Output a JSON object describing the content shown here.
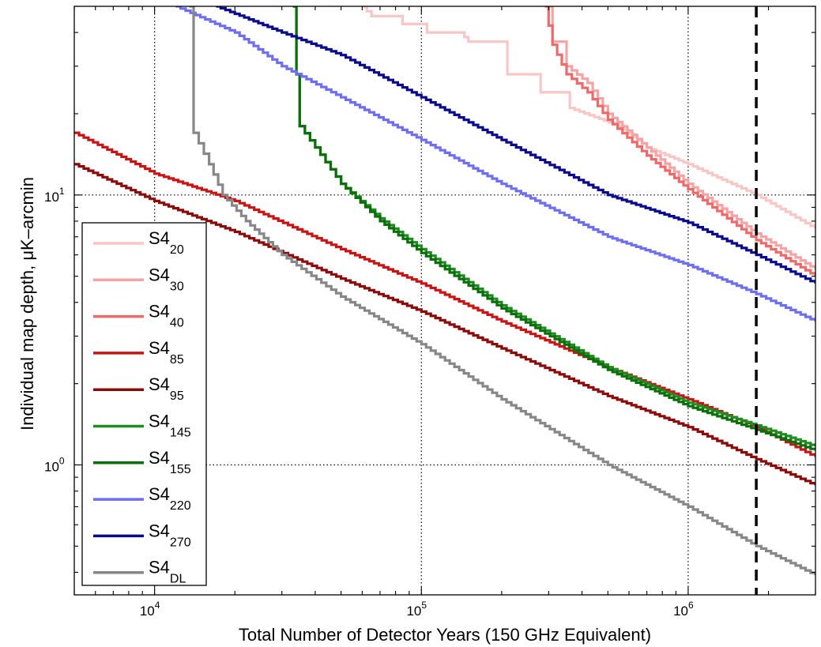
{
  "chart_data": {
    "type": "line",
    "title": "",
    "xlabel": "Total Number of Detector Years (150 GHz Equivalent)",
    "ylabel": "Individual map depth, μK–arcmin",
    "x_scale": "log",
    "y_scale": "log",
    "xlim": [
      5000,
      3000000
    ],
    "ylim": [
      0.33,
      50
    ],
    "grid": true,
    "legend_position": "lower-left",
    "x_ticks": [
      {
        "value": 10000,
        "base": "10",
        "exp": "4"
      },
      {
        "value": 100000,
        "base": "10",
        "exp": "5"
      },
      {
        "value": 1000000,
        "base": "10",
        "exp": "6"
      }
    ],
    "y_ticks": [
      {
        "value": 1,
        "base": "10",
        "exp": "0"
      },
      {
        "value": 10,
        "base": "10",
        "exp": "1"
      }
    ],
    "reference_line": {
      "x": 1800000,
      "style": "dashed",
      "color": "#000000"
    },
    "series": [
      {
        "name": "S4",
        "sub": "20",
        "color": "#F9C6C6",
        "points": [
          [
            60000,
            50
          ],
          [
            65000,
            46
          ],
          [
            80000,
            46
          ],
          [
            85000,
            43
          ],
          [
            100000,
            43
          ],
          [
            105000,
            40
          ],
          [
            140000,
            40
          ],
          [
            150000,
            37
          ],
          [
            200000,
            37
          ],
          [
            210000,
            28
          ],
          [
            270000,
            28
          ],
          [
            280000,
            24
          ],
          [
            340000,
            24
          ],
          [
            360000,
            21
          ],
          [
            550000,
            18
          ],
          [
            700000,
            15
          ],
          [
            1000000,
            13
          ],
          [
            1800000,
            10
          ],
          [
            3000000,
            7.5
          ]
        ]
      },
      {
        "name": "S4",
        "sub": "30",
        "color": "#F7A3A3",
        "points": [
          [
            300000,
            50
          ],
          [
            310000,
            37
          ],
          [
            340000,
            37
          ],
          [
            350000,
            30
          ],
          [
            420000,
            26
          ],
          [
            500000,
            20
          ],
          [
            700000,
            15
          ],
          [
            1000000,
            11
          ],
          [
            1800000,
            7.2
          ],
          [
            3000000,
            5.3
          ]
        ]
      },
      {
        "name": "S4",
        "sub": "40",
        "color": "#EE6A6A",
        "points": [
          [
            290000,
            50
          ],
          [
            310000,
            36
          ],
          [
            350000,
            28
          ],
          [
            420000,
            24
          ],
          [
            500000,
            19
          ],
          [
            700000,
            14
          ],
          [
            1000000,
            10.5
          ],
          [
            1800000,
            6.8
          ],
          [
            3000000,
            5
          ]
        ]
      },
      {
        "name": "S4",
        "sub": "85",
        "color": "#C81414",
        "points": [
          [
            5000,
            17
          ],
          [
            10000,
            12
          ],
          [
            20000,
            9.5
          ],
          [
            50000,
            6.3
          ],
          [
            100000,
            4.7
          ],
          [
            200000,
            3.4
          ],
          [
            500000,
            2.3
          ],
          [
            1000000,
            1.75
          ],
          [
            1800000,
            1.38
          ],
          [
            3000000,
            1.07
          ]
        ]
      },
      {
        "name": "S4",
        "sub": "95",
        "color": "#8B0A0A",
        "points": [
          [
            5000,
            13
          ],
          [
            10000,
            9.5
          ],
          [
            20000,
            7.3
          ],
          [
            50000,
            4.9
          ],
          [
            100000,
            3.7
          ],
          [
            200000,
            2.7
          ],
          [
            500000,
            1.8
          ],
          [
            1000000,
            1.38
          ],
          [
            1800000,
            1.05
          ],
          [
            3000000,
            0.84
          ]
        ]
      },
      {
        "name": "S4",
        "sub": "145",
        "color": "#1E8C1E",
        "points": [
          [
            33000,
            50
          ],
          [
            34000,
            28
          ],
          [
            35000,
            18
          ],
          [
            40000,
            15
          ],
          [
            50000,
            11
          ],
          [
            70000,
            8.2
          ],
          [
            100000,
            6.3
          ],
          [
            200000,
            3.9
          ],
          [
            500000,
            2.3
          ],
          [
            1000000,
            1.7
          ],
          [
            1800000,
            1.4
          ],
          [
            3000000,
            1.17
          ]
        ]
      },
      {
        "name": "S4",
        "sub": "155",
        "color": "#0A6E0A",
        "points": [
          [
            33000,
            50
          ],
          [
            34000,
            28
          ],
          [
            35000,
            18
          ],
          [
            40000,
            15
          ],
          [
            50000,
            11
          ],
          [
            70000,
            8
          ],
          [
            100000,
            6.1
          ],
          [
            200000,
            3.8
          ],
          [
            500000,
            2.25
          ],
          [
            1000000,
            1.65
          ],
          [
            1800000,
            1.35
          ],
          [
            3000000,
            1.13
          ]
        ]
      },
      {
        "name": "S4",
        "sub": "220",
        "color": "#6E6EF0",
        "points": [
          [
            12000,
            50
          ],
          [
            20000,
            40
          ],
          [
            30000,
            30
          ],
          [
            50000,
            23
          ],
          [
            100000,
            16
          ],
          [
            200000,
            11
          ],
          [
            500000,
            7
          ],
          [
            1000000,
            5.5
          ],
          [
            1800000,
            4.3
          ],
          [
            3000000,
            3.4
          ]
        ]
      },
      {
        "name": "S4",
        "sub": "270",
        "color": "#0A0A8C",
        "points": [
          [
            17000,
            50
          ],
          [
            30000,
            40
          ],
          [
            50000,
            33
          ],
          [
            100000,
            23
          ],
          [
            200000,
            16
          ],
          [
            500000,
            10
          ],
          [
            1000000,
            7.9
          ],
          [
            1800000,
            6
          ],
          [
            3000000,
            4.7
          ]
        ]
      },
      {
        "name": "S4",
        "sub": "DL",
        "color": "#878787",
        "points": [
          [
            13500,
            50
          ],
          [
            14000,
            17
          ],
          [
            16000,
            13
          ],
          [
            18000,
            10
          ],
          [
            22000,
            8
          ],
          [
            30000,
            6
          ],
          [
            50000,
            4.2
          ],
          [
            100000,
            2.8
          ],
          [
            200000,
            1.75
          ],
          [
            500000,
            1
          ],
          [
            1000000,
            0.7
          ],
          [
            1800000,
            0.5
          ],
          [
            3000000,
            0.39
          ]
        ]
      }
    ]
  }
}
